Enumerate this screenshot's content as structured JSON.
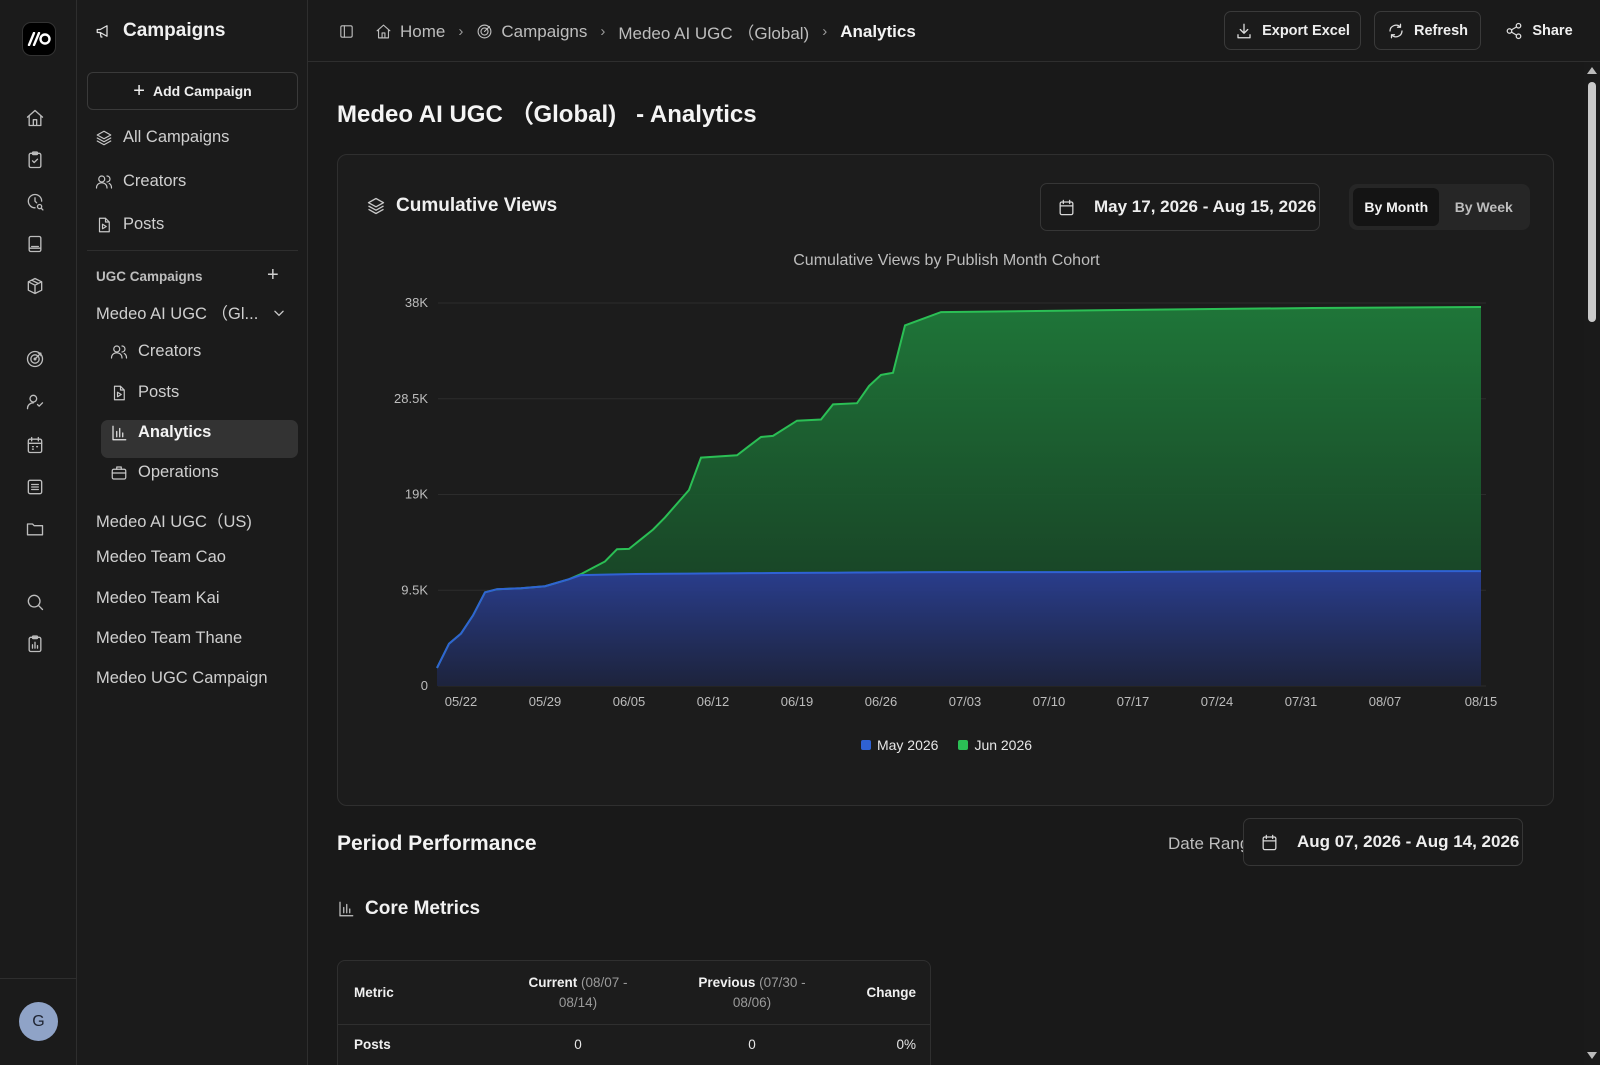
{
  "rail": {
    "icons": [
      "home-icon",
      "clipboard-check-icon",
      "clock-search-icon",
      "book-icon",
      "package-icon",
      "target-icon",
      "user-star-icon",
      "calendar-icon",
      "list-icon",
      "folder-icon",
      "search-icon",
      "clipboard-chart-icon"
    ],
    "avatar_letter": "G"
  },
  "sidebar": {
    "title": "Campaigns",
    "add_campaign": "Add Campaign",
    "nav": [
      {
        "label": "All Campaigns",
        "icon": "layers-icon"
      },
      {
        "label": "Creators",
        "icon": "users-icon"
      },
      {
        "label": "Posts",
        "icon": "file-play-icon"
      }
    ],
    "section_label": "UGC Campaigns",
    "expanded_campaign": "Medeo AI UGC （Gl...",
    "sub_items": [
      {
        "label": "Creators",
        "icon": "users-icon"
      },
      {
        "label": "Posts",
        "icon": "file-play-icon"
      },
      {
        "label": "Analytics",
        "icon": "bar-chart-icon",
        "active": true
      },
      {
        "label": "Operations",
        "icon": "briefcase-icon"
      }
    ],
    "campaigns": [
      "Medeo AI UGC（US)",
      "Medeo Team Cao",
      "Medeo Team Kai",
      "Medeo Team Thane",
      "Medeo UGC Campaign"
    ]
  },
  "topbar": {
    "breadcrumbs": [
      "Home",
      "Campaigns",
      "Medeo AI UGC （Global)",
      "Analytics"
    ],
    "export_label": "Export Excel",
    "refresh_label": "Refresh",
    "share_label": "Share"
  },
  "page": {
    "title": "Medeo AI UGC （Global)   - Analytics"
  },
  "cumulative": {
    "title": "Cumulative Views",
    "date_range": "May 17, 2026 - Aug 15, 2026",
    "toggle": {
      "by_month": "By Month",
      "by_week": "By Week",
      "selected": "By Month"
    }
  },
  "chart_data": {
    "type": "area",
    "title": "Cumulative Views by Publish Month Cohort",
    "x_ticks": [
      "05/22",
      "05/29",
      "06/05",
      "06/12",
      "06/19",
      "06/26",
      "07/03",
      "07/10",
      "07/17",
      "07/24",
      "07/31",
      "08/07",
      "08/15"
    ],
    "y_ticks": [
      "0",
      "9.5K",
      "19K",
      "28.5K",
      "38K"
    ],
    "ylim": [
      0,
      38000
    ],
    "stacked": true,
    "legend_position": "bottom",
    "grid": true,
    "series": [
      {
        "name": "May 2026",
        "color": "#2f62d4",
        "points": [
          [
            "05/20",
            1800
          ],
          [
            "05/21",
            4200
          ],
          [
            "05/22",
            5200
          ],
          [
            "05/23",
            7000
          ],
          [
            "05/24",
            9300
          ],
          [
            "05/25",
            9600
          ],
          [
            "05/27",
            9700
          ],
          [
            "05/29",
            9900
          ],
          [
            "05/31",
            10600
          ],
          [
            "06/01",
            11000
          ],
          [
            "06/05",
            11100
          ],
          [
            "06/15",
            11200
          ],
          [
            "07/01",
            11300
          ],
          [
            "07/15",
            11300
          ],
          [
            "08/01",
            11400
          ],
          [
            "08/15",
            11400
          ]
        ]
      },
      {
        "name": "Jun 2026",
        "color": "#2bbf55",
        "points": [
          [
            "05/20",
            0
          ],
          [
            "05/31",
            0
          ],
          [
            "06/01",
            100
          ],
          [
            "06/02",
            700
          ],
          [
            "06/03",
            1300
          ],
          [
            "06/04",
            2500
          ],
          [
            "06/05",
            2500
          ],
          [
            "06/07",
            4400
          ],
          [
            "06/08",
            5600
          ],
          [
            "06/10",
            8300
          ],
          [
            "06/11",
            11500
          ],
          [
            "06/14",
            11700
          ],
          [
            "06/16",
            13500
          ],
          [
            "06/17",
            13600
          ],
          [
            "06/19",
            15100
          ],
          [
            "06/21",
            15200
          ],
          [
            "06/22",
            16700
          ],
          [
            "06/24",
            16800
          ],
          [
            "06/25",
            18500
          ],
          [
            "06/26",
            19600
          ],
          [
            "06/27",
            19800
          ],
          [
            "06/28",
            24500
          ],
          [
            "07/01",
            25800
          ],
          [
            "07/15",
            26000
          ],
          [
            "08/01",
            26100
          ],
          [
            "08/15",
            26200
          ]
        ]
      }
    ]
  },
  "period": {
    "title": "Period Performance",
    "date_label": "Date Range",
    "date_range": "Aug 07, 2026 - Aug 14, 2026"
  },
  "core_metrics": {
    "title": "Core Metrics",
    "headers": {
      "metric": "Metric",
      "current": "Current",
      "current_range": "(08/07 - 08/14)",
      "previous": "Previous",
      "previous_range": "(07/30 - 08/06)",
      "change": "Change"
    },
    "rows": [
      {
        "metric": "Posts",
        "current": "0",
        "previous": "0",
        "change": "0%"
      }
    ]
  }
}
